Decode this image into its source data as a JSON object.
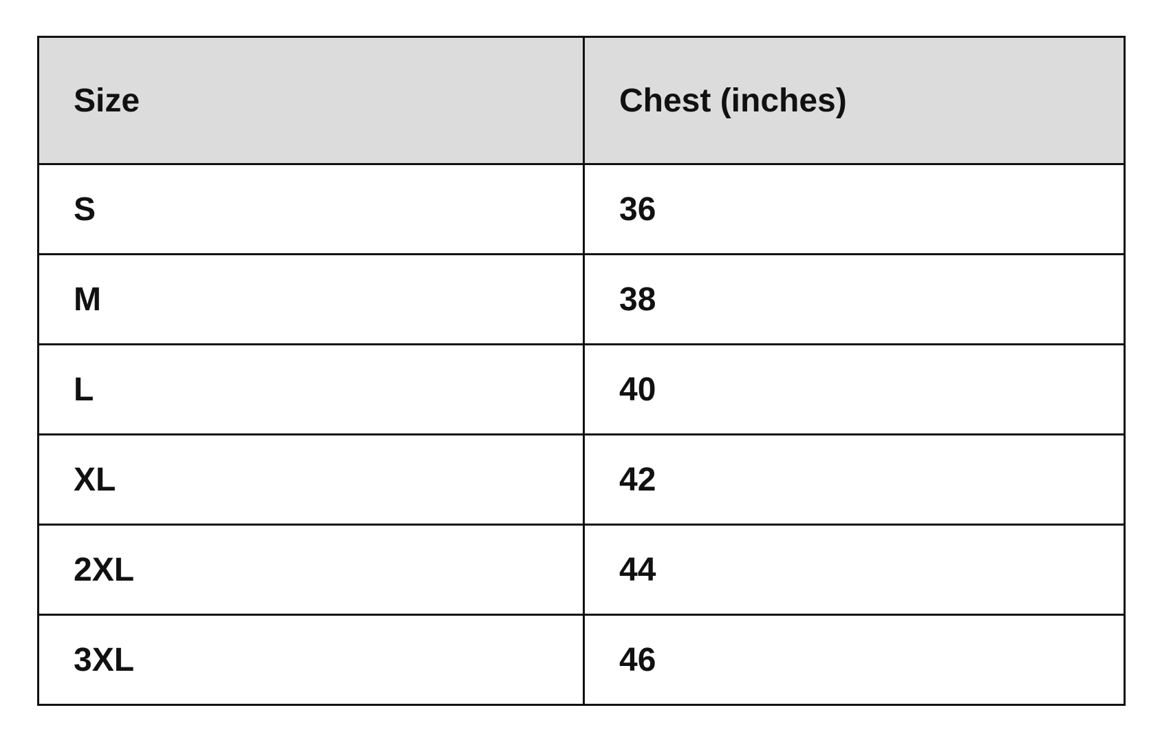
{
  "table": {
    "headers": [
      "Size",
      "Chest (inches)"
    ],
    "rows": [
      [
        "S",
        "36"
      ],
      [
        "M",
        "38"
      ],
      [
        "L",
        "40"
      ],
      [
        "XL",
        "42"
      ],
      [
        "2XL",
        "44"
      ],
      [
        "3XL",
        "46"
      ]
    ]
  },
  "colors": {
    "header_bg": "#dcdcdc",
    "border": "#111111"
  }
}
